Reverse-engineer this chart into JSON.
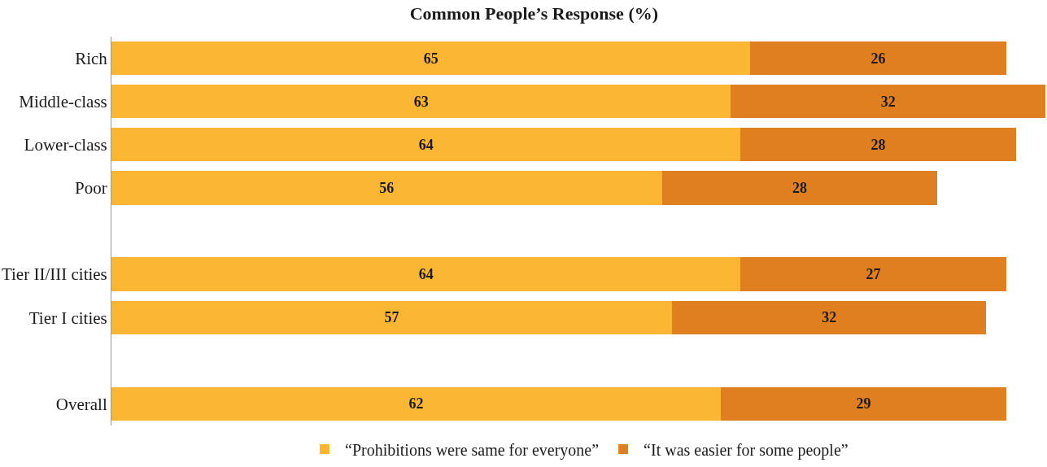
{
  "chart_data": {
    "type": "bar",
    "orientation": "horizontal",
    "stacked": true,
    "title": "Common People’s Response (%)",
    "categories": [
      "Rich",
      "Middle-class",
      "Lower-class",
      "Poor",
      null,
      "Tier II/III cities",
      "Tier I cities",
      null,
      "Overall"
    ],
    "series": [
      {
        "name": "“Prohibitions were same for everyone”",
        "color": "#fbb733",
        "values": [
          65,
          63,
          64,
          56,
          null,
          64,
          57,
          null,
          62
        ]
      },
      {
        "name": "“It was easier for some people”",
        "color": "#e07f20",
        "values": [
          26,
          32,
          28,
          28,
          null,
          27,
          32,
          null,
          29
        ]
      }
    ],
    "xlim": [
      0,
      95
    ],
    "data_labels": true,
    "legend": "bottom",
    "tick_labels": "y"
  }
}
